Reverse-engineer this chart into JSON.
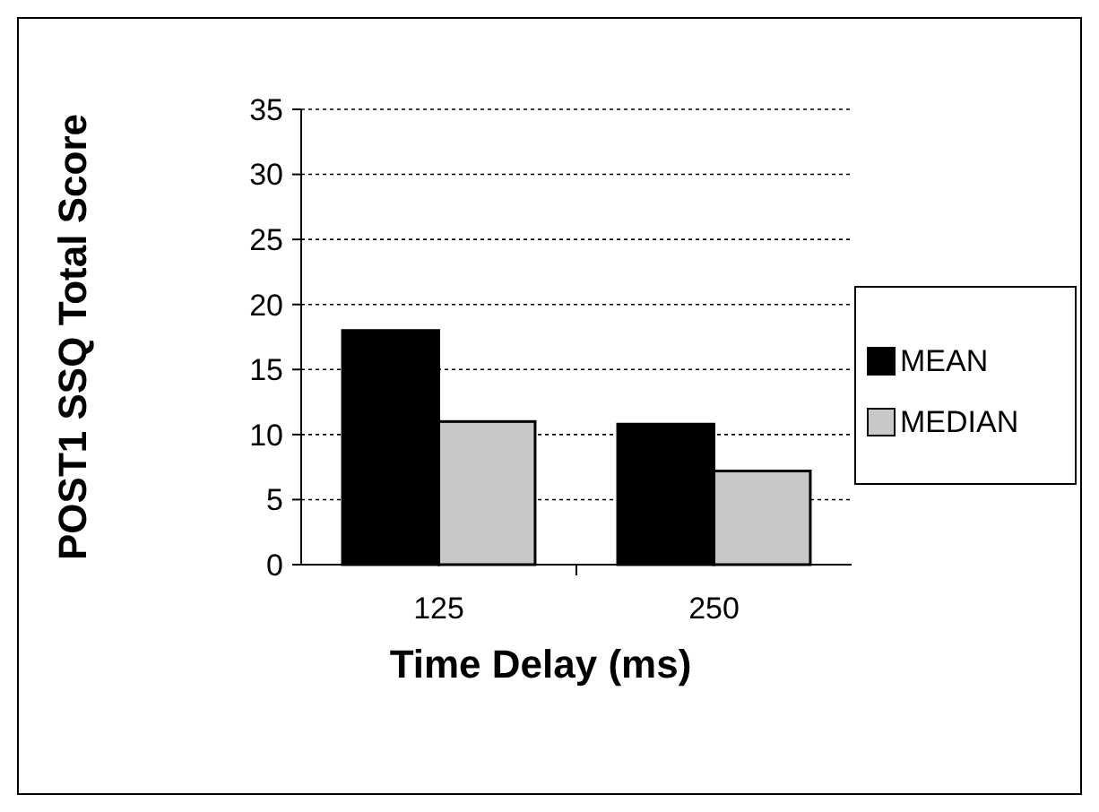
{
  "chart_data": {
    "type": "bar",
    "categories": [
      "125",
      "250"
    ],
    "series": [
      {
        "name": "MEAN",
        "color": "#000000",
        "values": [
          18,
          10.8
        ]
      },
      {
        "name": "MEDIAN",
        "color": "#c8c8c8",
        "values": [
          11,
          7.2
        ]
      }
    ],
    "xlabel": "Time Delay (ms)",
    "ylabel": "POST1 SSQ Total Score",
    "ylim": [
      0,
      35
    ],
    "yticks": [
      0,
      5,
      10,
      15,
      20,
      25,
      30,
      35
    ],
    "grid": "y",
    "legend": "right"
  }
}
